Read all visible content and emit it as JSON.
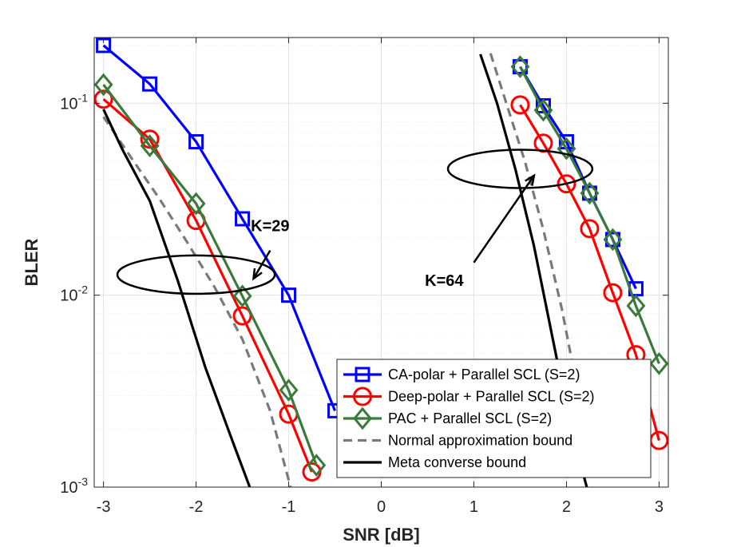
{
  "chart_data": {
    "type": "line",
    "title": "",
    "xlabel": "SNR [dB]",
    "ylabel": "BLER",
    "xlim": [
      -3.1,
      3.1
    ],
    "ylim": [
      0.001,
      0.22
    ],
    "yscale": "log",
    "grid": true,
    "minor_grid": true,
    "x_ticks": [
      -3,
      -2,
      -1,
      0,
      1,
      2,
      3
    ],
    "x_tick_labels": [
      "-3",
      "-2",
      "-1",
      "0",
      "1",
      "2",
      "3"
    ],
    "y_ticks": [
      {
        "value": 0.1,
        "base": "10",
        "exp": "-1"
      },
      {
        "value": 0.01,
        "base": "10",
        "exp": "-2"
      },
      {
        "value": 0.001,
        "base": "10",
        "exp": "-3"
      }
    ],
    "legend_position": "bottom-right",
    "series": [
      {
        "name": "CA-polar + Parallel SCL (S=2)",
        "color": "#0000ff",
        "marker": "square",
        "dash": "solid",
        "points": [
          [
            -3,
            0.2
          ],
          [
            -2.5,
            0.126
          ],
          [
            -2,
            0.063
          ],
          [
            -1.5,
            0.025
          ],
          [
            -1,
            0.01
          ],
          [
            -0.5,
            0.0025
          ]
        ]
      },
      {
        "name": "Deep-polar + Parallel SCL (S=2)",
        "color": "#ff0000",
        "marker": "circle",
        "dash": "solid",
        "points": [
          [
            -3,
            0.105
          ],
          [
            -2.5,
            0.065
          ],
          [
            -2,
            0.0245
          ],
          [
            -1.5,
            0.0078
          ],
          [
            -1,
            0.0024
          ],
          [
            -0.75,
            0.0012
          ]
        ]
      },
      {
        "name": "PAC + Parallel SCL (S=2)",
        "color": "#3a7a3a",
        "marker": "diamond",
        "dash": "solid",
        "points": [
          [
            -3,
            0.125
          ],
          [
            -2.5,
            0.06
          ],
          [
            -2,
            0.03
          ],
          [
            -1.5,
            0.0099
          ],
          [
            -1,
            0.0032
          ],
          [
            -0.7,
            0.0013
          ]
        ]
      },
      {
        "name": "Normal approximation bound",
        "color": "#7a7a7a",
        "marker": "none",
        "dash": "dashed",
        "points": [
          [
            -3,
            0.085
          ],
          [
            -2.7,
            0.052
          ],
          [
            -2.4,
            0.032
          ],
          [
            -2.1,
            0.019
          ],
          [
            -1.8,
            0.011
          ],
          [
            -1.5,
            0.0059
          ],
          [
            -1.2,
            0.0025
          ],
          [
            -0.98,
            0.001
          ]
        ]
      },
      {
        "name": "Meta converse bound",
        "color": "#000000",
        "marker": "none",
        "dash": "solid",
        "points": [
          [
            -3,
            0.093
          ],
          [
            -2.8,
            0.058
          ],
          [
            -2.5,
            0.031
          ],
          [
            -2.2,
            0.012
          ],
          [
            -1.9,
            0.0042
          ],
          [
            -1.6,
            0.0017
          ],
          [
            -1.42,
            0.001
          ]
        ]
      }
    ],
    "series_k64": [
      {
        "name": "CA-polar + Parallel SCL (S=2)",
        "color": "#0000ff",
        "marker": "square",
        "dash": "solid",
        "points": [
          [
            1.5,
            0.155
          ],
          [
            1.75,
            0.097
          ],
          [
            2,
            0.063
          ],
          [
            2.25,
            0.034
          ],
          [
            2.5,
            0.0195
          ],
          [
            2.75,
            0.0108
          ]
        ]
      },
      {
        "name": "Deep-polar + Parallel SCL (S=2)",
        "color": "#ff0000",
        "marker": "circle",
        "dash": "solid",
        "points": [
          [
            1.5,
            0.098
          ],
          [
            1.75,
            0.062
          ],
          [
            2,
            0.038
          ],
          [
            2.25,
            0.0222
          ],
          [
            2.5,
            0.0103
          ],
          [
            2.75,
            0.0049
          ],
          [
            3,
            0.00175
          ]
        ]
      },
      {
        "name": "PAC + Parallel SCL (S=2)",
        "color": "#3a7a3a",
        "marker": "diamond",
        "dash": "solid",
        "points": [
          [
            1.5,
            0.155
          ],
          [
            1.75,
            0.092
          ],
          [
            2,
            0.058
          ],
          [
            2.25,
            0.034
          ],
          [
            2.5,
            0.0195
          ],
          [
            2.75,
            0.0088
          ],
          [
            3,
            0.0044
          ]
        ]
      },
      {
        "name": "Normal approximation bound",
        "color": "#7a7a7a",
        "marker": "none",
        "dash": "dashed",
        "points": [
          [
            1.18,
            0.182
          ],
          [
            1.35,
            0.1
          ],
          [
            1.55,
            0.05
          ],
          [
            1.75,
            0.022
          ],
          [
            1.95,
            0.0085
          ],
          [
            2.1,
            0.0036
          ],
          [
            2.25,
            0.0012
          ]
        ]
      },
      {
        "name": "Meta converse bound",
        "color": "#000000",
        "marker": "none",
        "dash": "solid",
        "points": [
          [
            1.07,
            0.18
          ],
          [
            1.25,
            0.1
          ],
          [
            1.45,
            0.045
          ],
          [
            1.65,
            0.018
          ],
          [
            1.85,
            0.006
          ],
          [
            2.05,
            0.002
          ],
          [
            2.22,
            0.001
          ]
        ]
      }
    ],
    "annotations": [
      {
        "label": "K=29",
        "text_at": [
          -1.2,
          0.0215
        ],
        "ellipse_center": [
          -2.0,
          0.0128
        ],
        "ellipse_rx": 0.85,
        "arrow_from": [
          -1.2,
          0.0171
        ],
        "arrow_to": [
          -1.38,
          0.0122
        ]
      },
      {
        "label": "K=64",
        "text_at": [
          0.68,
          0.0112
        ],
        "ellipse_center": [
          1.5,
          0.0455
        ],
        "ellipse_rx": 0.78,
        "arrow_from": [
          1.0,
          0.0148
        ],
        "arrow_to": [
          1.65,
          0.042
        ]
      }
    ]
  }
}
